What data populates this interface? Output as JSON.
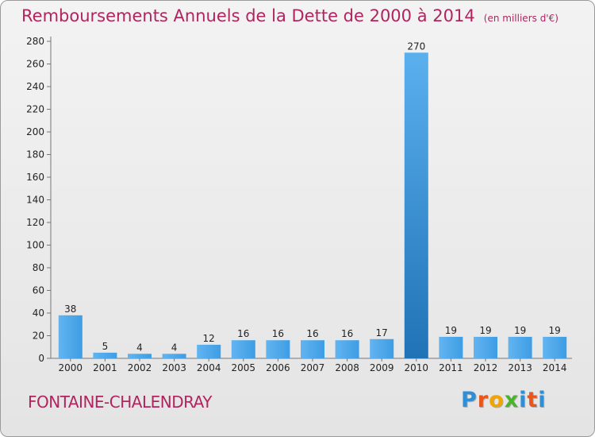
{
  "title": "Remboursements Annuels de la Dette de 2000 à 2014",
  "unit": "(en milliers d'€)",
  "commune": "FONTAINE-CHALENDRAY",
  "logo": {
    "text": "Proxiti",
    "letter_colors": [
      "#2e8fd6",
      "#e8561c",
      "#f2a400",
      "#4ab52a",
      "#2e8fd6",
      "#e8561c",
      "#2e8fd6"
    ]
  },
  "chart_data": {
    "type": "bar",
    "title": "Remboursements Annuels de la Dette de 2000 à 2014",
    "categories": [
      "2000",
      "2001",
      "2002",
      "2003",
      "2004",
      "2005",
      "2006",
      "2007",
      "2008",
      "2009",
      "2010",
      "2011",
      "2012",
      "2013",
      "2014"
    ],
    "values": [
      38,
      5,
      4,
      4,
      12,
      16,
      16,
      16,
      16,
      17,
      270,
      19,
      19,
      19,
      19
    ],
    "xlabel": "",
    "ylabel": "",
    "ylim": [
      0,
      280
    ],
    "yticks": [
      0,
      20,
      40,
      60,
      80,
      100,
      120,
      140,
      160,
      180,
      200,
      220,
      240,
      260,
      280
    ],
    "grid": false,
    "bar_color": "#3e9de4",
    "highlight_color": "#1f73b6"
  }
}
